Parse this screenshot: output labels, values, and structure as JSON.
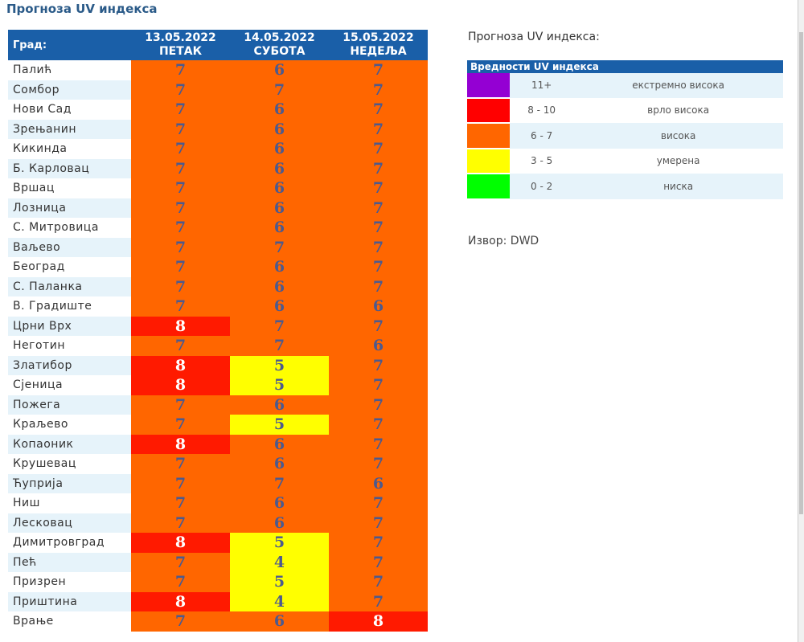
{
  "title": "Прогноза UV индекса",
  "table": {
    "city_header": "Град:",
    "days": [
      {
        "date": "13.05.2022",
        "name": "ПЕТАК"
      },
      {
        "date": "14.05.2022",
        "name": "СУБОТА"
      },
      {
        "date": "15.05.2022",
        "name": "НЕДЕЉА"
      }
    ],
    "rows": [
      [
        "Палић",
        7,
        6,
        7
      ],
      [
        "Сомбор",
        7,
        7,
        7
      ],
      [
        "Нови Сад",
        7,
        6,
        7
      ],
      [
        "Зрењанин",
        7,
        6,
        7
      ],
      [
        "Кикинда",
        7,
        6,
        7
      ],
      [
        "Б. Карловац",
        7,
        6,
        7
      ],
      [
        "Вршац",
        7,
        6,
        7
      ],
      [
        "Лозница",
        7,
        6,
        7
      ],
      [
        "С. Митровица",
        7,
        6,
        7
      ],
      [
        "Ваљево",
        7,
        7,
        7
      ],
      [
        "Београд",
        7,
        6,
        7
      ],
      [
        "С. Паланка",
        7,
        6,
        7
      ],
      [
        "В. Градиште",
        7,
        6,
        6
      ],
      [
        "Црни Врх",
        8,
        7,
        7
      ],
      [
        "Неготин",
        7,
        7,
        6
      ],
      [
        "Златибор",
        8,
        5,
        7
      ],
      [
        "Сјеница",
        8,
        5,
        7
      ],
      [
        "Пожега",
        7,
        6,
        7
      ],
      [
        "Краљево",
        7,
        5,
        7
      ],
      [
        "Копаоник",
        8,
        6,
        7
      ],
      [
        "Крушевац",
        7,
        6,
        7
      ],
      [
        "Ћуприја",
        7,
        7,
        6
      ],
      [
        "Ниш",
        7,
        6,
        7
      ],
      [
        "Лесковац",
        7,
        6,
        7
      ],
      [
        "Димитровград",
        8,
        5,
        7
      ],
      [
        "Пећ",
        7,
        4,
        7
      ],
      [
        "Призрен",
        7,
        5,
        7
      ],
      [
        "Приштина",
        8,
        4,
        7
      ],
      [
        "Врање",
        7,
        6,
        8
      ]
    ]
  },
  "legend": {
    "title": "Прогноза UV индекса:",
    "header": "Вредности UV индекса",
    "items": [
      {
        "range": "11+",
        "label": "екстремно висока",
        "color": "#9400d3"
      },
      {
        "range": "8 - 10",
        "label": "врло висока",
        "color": "#ff0000"
      },
      {
        "range": "6 - 7",
        "label": "висока",
        "color": "#ff6600"
      },
      {
        "range": "3 - 5",
        "label": "умерена",
        "color": "#ffff00"
      },
      {
        "range": "0 - 2",
        "label": "ниска",
        "color": "#00ff00"
      }
    ]
  },
  "source": "Извор: DWD"
}
